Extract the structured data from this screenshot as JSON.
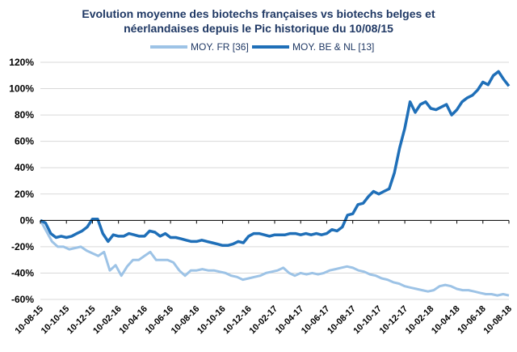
{
  "chart_data": {
    "type": "line",
    "title_line1": "Evolution moyenne des biotechs françaises vs biotechs belges et",
    "title_line2": "néerlandaises depuis le Pic historique du 10/08/15",
    "xlabel": "",
    "ylabel": "",
    "ylim": [
      -0.6,
      1.2
    ],
    "legend_position": "top",
    "grid": true,
    "y_ticks": [
      "120%",
      "100%",
      "80%",
      "60%",
      "40%",
      "20%",
      "0%",
      "-20%",
      "-40%",
      "-60%"
    ],
    "x_ticks": [
      "10-08-15",
      "10-10-15",
      "10-12-15",
      "10-02-16",
      "10-04-16",
      "10-06-16",
      "10-08-16",
      "10-10-16",
      "10-12-16",
      "10-02-17",
      "10-04-17",
      "10-06-17",
      "10-08-17",
      "10-10-17",
      "10-12-17",
      "10-02-18",
      "10-04-18",
      "10-06-18",
      "10-08-18"
    ],
    "series": [
      {
        "name": "MOY. FR [36]",
        "color": "#9dc3e6",
        "values": [
          0.0,
          -0.08,
          -0.16,
          -0.2,
          -0.2,
          -0.22,
          -0.21,
          -0.2,
          -0.23,
          -0.25,
          -0.27,
          -0.24,
          -0.38,
          -0.34,
          -0.42,
          -0.35,
          -0.3,
          -0.3,
          -0.27,
          -0.24,
          -0.3,
          -0.3,
          -0.3,
          -0.32,
          -0.38,
          -0.42,
          -0.38,
          -0.38,
          -0.37,
          -0.38,
          -0.38,
          -0.39,
          -0.4,
          -0.42,
          -0.43,
          -0.45,
          -0.44,
          -0.43,
          -0.42,
          -0.4,
          -0.39,
          -0.38,
          -0.36,
          -0.4,
          -0.42,
          -0.4,
          -0.41,
          -0.4,
          -0.41,
          -0.4,
          -0.38,
          -0.37,
          -0.36,
          -0.35,
          -0.36,
          -0.38,
          -0.39,
          -0.41,
          -0.42,
          -0.44,
          -0.45,
          -0.47,
          -0.48,
          -0.5,
          -0.51,
          -0.52,
          -0.53,
          -0.54,
          -0.53,
          -0.5,
          -0.49,
          -0.5,
          -0.52,
          -0.53,
          -0.53,
          -0.54,
          -0.55,
          -0.56,
          -0.56,
          -0.57,
          -0.56,
          -0.57
        ]
      },
      {
        "name": "MOY. BE & NL [13]",
        "color": "#1f6fb8",
        "values": [
          0.0,
          -0.02,
          -0.1,
          -0.13,
          -0.12,
          -0.13,
          -0.12,
          -0.1,
          -0.08,
          -0.05,
          0.01,
          0.01,
          -0.1,
          -0.16,
          -0.11,
          -0.12,
          -0.12,
          -0.1,
          -0.11,
          -0.12,
          -0.12,
          -0.08,
          -0.09,
          -0.12,
          -0.1,
          -0.13,
          -0.13,
          -0.14,
          -0.15,
          -0.16,
          -0.16,
          -0.15,
          -0.16,
          -0.17,
          -0.18,
          -0.19,
          -0.19,
          -0.18,
          -0.16,
          -0.17,
          -0.12,
          -0.1,
          -0.1,
          -0.11,
          -0.12,
          -0.11,
          -0.11,
          -0.11,
          -0.1,
          -0.1,
          -0.11,
          -0.1,
          -0.11,
          -0.1,
          -0.11,
          -0.1,
          -0.07,
          -0.08,
          -0.05,
          0.04,
          0.05,
          0.12,
          0.13,
          0.18,
          0.22,
          0.2,
          0.22,
          0.24,
          0.36,
          0.55,
          0.7,
          0.9,
          0.82,
          0.88,
          0.9,
          0.85,
          0.84,
          0.86,
          0.88,
          0.8,
          0.84,
          0.9,
          0.93,
          0.95,
          0.99,
          1.05,
          1.03,
          1.1,
          1.13,
          1.07,
          1.02
        ]
      }
    ]
  }
}
